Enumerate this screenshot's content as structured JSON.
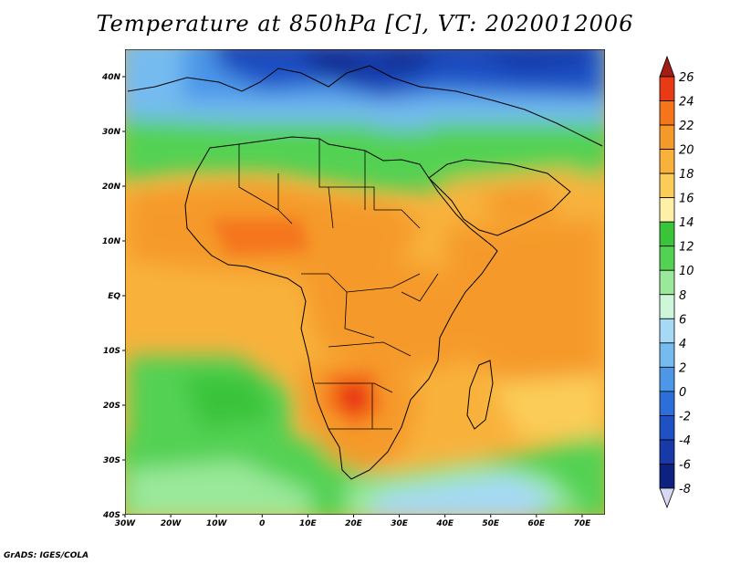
{
  "title": "Temperature at 850hPa [C], VT: 2020012006",
  "credit": "GrADS: IGES/COLA",
  "map": {
    "region": "Africa and surrounding oceans",
    "field": "850hPa temperature",
    "lon_range": [
      -30,
      75
    ],
    "lat_range": [
      -40,
      45
    ],
    "lat_labels": [
      "40N",
      "30N",
      "20N",
      "10N",
      "EQ",
      "10S",
      "20S",
      "30S",
      "40S"
    ],
    "lon_labels": [
      "30W",
      "20W",
      "10W",
      "0",
      "10E",
      "20E",
      "30E",
      "40E",
      "50E",
      "60E",
      "70E"
    ],
    "notable_features": {
      "warmest_region": "southern Africa (about 22-26 C over Botswana/Zambia area)",
      "coldest_region": "Mediterranean/Europe north edge (about -8 to 0 C)"
    }
  },
  "colorbar": {
    "levels": [
      "26",
      "24",
      "22",
      "20",
      "18",
      "16",
      "14",
      "12",
      "10",
      "8",
      "6",
      "4",
      "2",
      "0",
      "-2",
      "-4",
      "-6",
      "-8"
    ],
    "colors": [
      "#a01e14",
      "#e83a14",
      "#f5761a",
      "#f59a2a",
      "#f8b23c",
      "#fbcd58",
      "#fff0a8",
      "#3ac43a",
      "#52d152",
      "#9ae89a",
      "#cdf7d8",
      "#a6d9f5",
      "#75bbf0",
      "#4c97e8",
      "#2c6fd8",
      "#1f50c4",
      "#173aa8",
      "#0d2280",
      "#d8d8f4"
    ]
  }
}
